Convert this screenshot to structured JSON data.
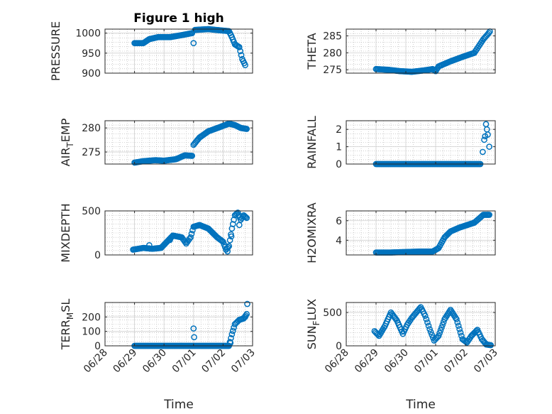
{
  "colors": {
    "marker": "#0072BD",
    "axis": "#262626",
    "grid": "#b0b0b0"
  },
  "chart_data": [
    {
      "type": "scatter",
      "title": "Figure 1 high",
      "ylabel": "PRESSURE",
      "xlabel": "",
      "xlim": [
        0,
        5
      ],
      "ylim": [
        900,
        1010
      ],
      "yticks": [
        900,
        950,
        1000
      ],
      "xticks": [
        0,
        1,
        2,
        3,
        4,
        5
      ],
      "xtick_labels": [
        "06/28",
        "06/29",
        "06/30",
        "07/01",
        "07/02",
        "07/03"
      ],
      "show_xtick_labels": false,
      "grid": true,
      "keypoints": [
        [
          1.0,
          975
        ],
        [
          1.3,
          975
        ],
        [
          1.5,
          985
        ],
        [
          1.8,
          990
        ],
        [
          2.2,
          990
        ],
        [
          2.6,
          995
        ],
        [
          2.95,
          1000
        ],
        [
          3.0,
          975
        ],
        [
          3.05,
          1008
        ],
        [
          3.5,
          1010
        ],
        [
          3.9,
          1007
        ],
        [
          4.2,
          1005
        ],
        [
          4.3,
          990
        ],
        [
          4.4,
          972
        ],
        [
          4.55,
          965
        ],
        [
          4.65,
          935
        ],
        [
          4.75,
          920
        ]
      ]
    },
    {
      "type": "scatter",
      "title": "",
      "ylabel": "THETA",
      "xlabel": "",
      "xlim": [
        0,
        5
      ],
      "ylim": [
        274,
        287
      ],
      "yticks": [
        275,
        280,
        285
      ],
      "xticks": [
        0,
        1,
        2,
        3,
        4,
        5
      ],
      "xtick_labels": [
        "06/28",
        "06/29",
        "06/30",
        "07/01",
        "07/02",
        "07/03"
      ],
      "show_xtick_labels": false,
      "grid": true,
      "keypoints": [
        [
          1.0,
          275.2
        ],
        [
          1.4,
          275.0
        ],
        [
          1.8,
          274.6
        ],
        [
          2.2,
          274.4
        ],
        [
          2.6,
          274.8
        ],
        [
          2.9,
          275.2
        ],
        [
          3.0,
          274.6
        ],
        [
          3.1,
          276.0
        ],
        [
          3.5,
          277.5
        ],
        [
          3.9,
          278.8
        ],
        [
          4.3,
          280.0
        ],
        [
          4.45,
          282.0
        ],
        [
          4.6,
          284.0
        ],
        [
          4.75,
          285.5
        ],
        [
          4.82,
          286.3
        ]
      ]
    },
    {
      "type": "scatter",
      "title": "",
      "ylabel": "AIR_TEMP",
      "xlabel": "",
      "xlim": [
        0,
        5
      ],
      "ylim": [
        272.5,
        281.5
      ],
      "yticks": [
        275,
        280
      ],
      "xticks": [
        0,
        1,
        2,
        3,
        4,
        5
      ],
      "xtick_labels": [
        "06/28",
        "06/29",
        "06/30",
        "07/01",
        "07/02",
        "07/03"
      ],
      "show_xtick_labels": false,
      "grid": true,
      "keypoints": [
        [
          1.0,
          272.8
        ],
        [
          1.3,
          273.1
        ],
        [
          1.7,
          273.3
        ],
        [
          2.0,
          273.2
        ],
        [
          2.4,
          273.5
        ],
        [
          2.7,
          274.3
        ],
        [
          2.95,
          274.2
        ],
        [
          3.0,
          276.5
        ],
        [
          3.2,
          278.0
        ],
        [
          3.5,
          279.3
        ],
        [
          3.9,
          280.2
        ],
        [
          4.2,
          280.9
        ],
        [
          4.4,
          280.6
        ],
        [
          4.6,
          280.0
        ],
        [
          4.8,
          279.8
        ]
      ]
    },
    {
      "type": "scatter",
      "title": "",
      "ylabel": "RAINFALL",
      "xlabel": "",
      "xlim": [
        0,
        5
      ],
      "ylim": [
        0,
        2.5
      ],
      "yticks": [
        0,
        1,
        2
      ],
      "xticks": [
        0,
        1,
        2,
        3,
        4,
        5
      ],
      "xtick_labels": [
        "06/28",
        "06/29",
        "06/30",
        "07/01",
        "07/02",
        "07/03"
      ],
      "show_xtick_labels": false,
      "grid": true,
      "keypoints": [
        [
          1.0,
          0
        ],
        [
          4.5,
          0
        ]
      ],
      "extra_points": [
        [
          4.58,
          0.7
        ],
        [
          4.63,
          1.4
        ],
        [
          4.66,
          1.6
        ],
        [
          4.69,
          2.3
        ],
        [
          4.72,
          2.0
        ],
        [
          4.75,
          1.7
        ],
        [
          4.8,
          1.0
        ]
      ]
    },
    {
      "type": "scatter",
      "title": "",
      "ylabel": "MIXDEPTH",
      "xlabel": "",
      "xlim": [
        0,
        5
      ],
      "ylim": [
        0,
        500
      ],
      "yticks": [
        0,
        500
      ],
      "xticks": [
        0,
        1,
        2,
        3,
        4,
        5
      ],
      "xtick_labels": [
        "06/28",
        "06/29",
        "06/30",
        "07/01",
        "07/02",
        "07/03"
      ],
      "show_xtick_labels": false,
      "grid": true,
      "keypoints": [
        [
          0.95,
          60
        ],
        [
          1.3,
          80
        ],
        [
          1.6,
          70
        ],
        [
          1.9,
          80
        ],
        [
          2.1,
          150
        ],
        [
          2.3,
          220
        ],
        [
          2.6,
          200
        ],
        [
          2.75,
          130
        ],
        [
          2.9,
          200
        ],
        [
          3.0,
          320
        ],
        [
          3.2,
          340
        ],
        [
          3.5,
          300
        ],
        [
          3.8,
          200
        ],
        [
          4.0,
          150
        ],
        [
          4.1,
          60
        ],
        [
          4.2,
          100
        ],
        [
          4.3,
          300
        ],
        [
          4.4,
          450
        ],
        [
          4.5,
          480
        ],
        [
          4.6,
          400
        ],
        [
          4.7,
          450
        ],
        [
          4.8,
          420
        ]
      ],
      "extra_points": [
        [
          1.5,
          110
        ],
        [
          2.2,
          170
        ],
        [
          4.15,
          40
        ],
        [
          4.28,
          210
        ],
        [
          4.55,
          340
        ]
      ]
    },
    {
      "type": "scatter",
      "title": "",
      "ylabel": "H2OMIXRA",
      "xlabel": "",
      "xlim": [
        0,
        5
      ],
      "ylim": [
        2.5,
        7
      ],
      "yticks": [
        4,
        6
      ],
      "xticks": [
        0,
        1,
        2,
        3,
        4,
        5
      ],
      "xtick_labels": [
        "06/28",
        "06/29",
        "06/30",
        "07/01",
        "07/02",
        "07/03"
      ],
      "show_xtick_labels": false,
      "grid": true,
      "keypoints": [
        [
          1.0,
          2.75
        ],
        [
          1.5,
          2.75
        ],
        [
          2.0,
          2.8
        ],
        [
          2.5,
          2.85
        ],
        [
          2.9,
          2.85
        ],
        [
          3.1,
          3.2
        ],
        [
          3.3,
          4.3
        ],
        [
          3.5,
          4.9
        ],
        [
          3.8,
          5.3
        ],
        [
          4.1,
          5.6
        ],
        [
          4.3,
          5.8
        ],
        [
          4.45,
          6.2
        ],
        [
          4.6,
          6.6
        ],
        [
          4.8,
          6.6
        ]
      ]
    },
    {
      "type": "scatter",
      "title": "",
      "ylabel": "TERR_MSL",
      "xlabel": "Time",
      "xlim": [
        0,
        5
      ],
      "ylim": [
        0,
        300
      ],
      "yticks": [
        0,
        100,
        200
      ],
      "xticks": [
        0,
        1,
        2,
        3,
        4,
        5
      ],
      "xtick_labels": [
        "06/28",
        "06/29",
        "06/30",
        "07/01",
        "07/02",
        "07/03"
      ],
      "show_xtick_labels": true,
      "grid": true,
      "keypoints": [
        [
          1.0,
          0
        ],
        [
          4.2,
          0
        ],
        [
          4.3,
          80
        ],
        [
          4.4,
          150
        ],
        [
          4.55,
          180
        ],
        [
          4.7,
          190
        ],
        [
          4.8,
          220
        ]
      ],
      "extra_points": [
        [
          3.0,
          120
        ],
        [
          3.02,
          60
        ],
        [
          4.25,
          20
        ],
        [
          4.82,
          290
        ],
        [
          4.75,
          200
        ]
      ]
    },
    {
      "type": "scatter",
      "title": "",
      "ylabel": "SUN_FLUX",
      "xlabel": "Time",
      "xlim": [
        0,
        5
      ],
      "ylim": [
        0,
        650
      ],
      "yticks": [
        0,
        500
      ],
      "xticks": [
        0,
        1,
        2,
        3,
        4,
        5
      ],
      "xtick_labels": [
        "06/28",
        "06/29",
        "06/30",
        "07/01",
        "07/02",
        "07/03"
      ],
      "show_xtick_labels": true,
      "grid": true,
      "keypoints": [
        [
          0.95,
          220
        ],
        [
          1.1,
          150
        ],
        [
          1.3,
          300
        ],
        [
          1.5,
          500
        ],
        [
          1.7,
          380
        ],
        [
          1.9,
          180
        ],
        [
          2.05,
          320
        ],
        [
          2.2,
          420
        ],
        [
          2.5,
          580
        ],
        [
          2.65,
          450
        ],
        [
          2.8,
          250
        ],
        [
          2.95,
          80
        ],
        [
          3.1,
          150
        ],
        [
          3.3,
          400
        ],
        [
          3.5,
          540
        ],
        [
          3.7,
          400
        ],
        [
          3.9,
          100
        ],
        [
          4.05,
          50
        ],
        [
          4.2,
          150
        ],
        [
          4.4,
          240
        ],
        [
          4.55,
          100
        ],
        [
          4.7,
          20
        ],
        [
          4.85,
          10
        ]
      ]
    }
  ]
}
